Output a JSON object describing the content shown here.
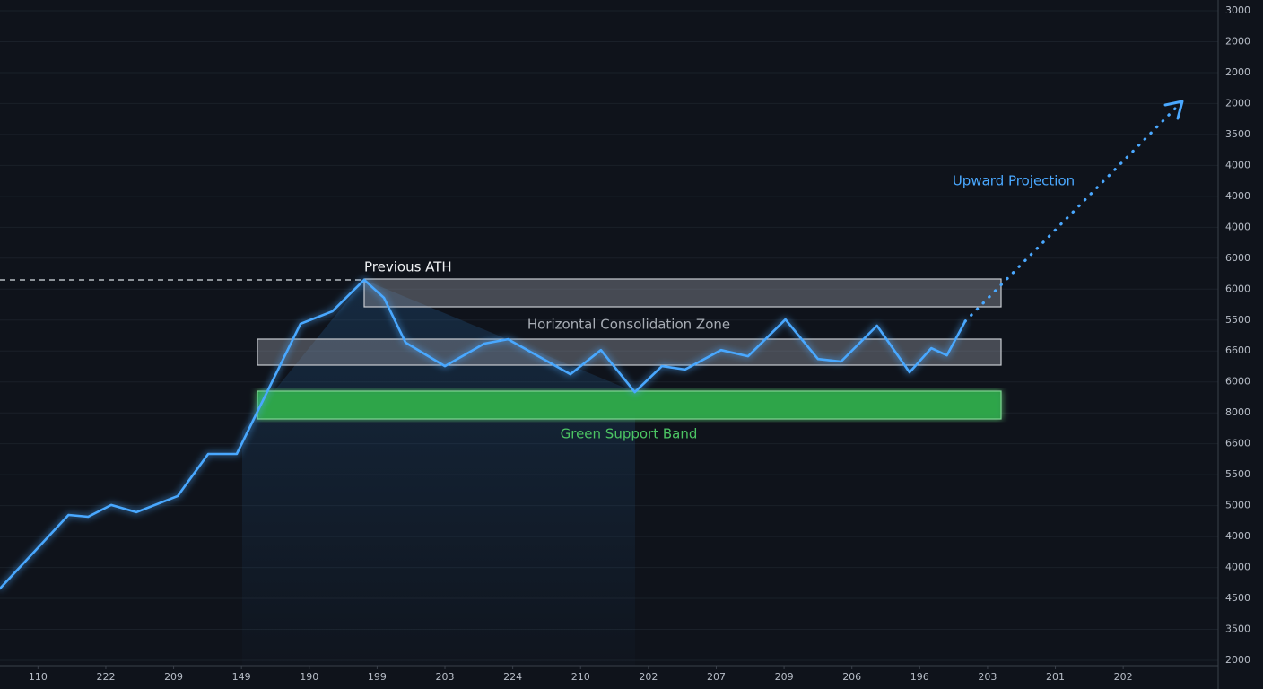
{
  "chart_data": {
    "type": "line",
    "xlim": [
      -0.56,
      17.4
    ],
    "ylim": [
      0,
      21
    ],
    "grid": true,
    "xticks": [
      {
        "value": 0,
        "label": "110"
      },
      {
        "value": 1,
        "label": "222"
      },
      {
        "value": 2,
        "label": "209"
      },
      {
        "value": 3,
        "label": "149"
      },
      {
        "value": 4,
        "label": "190"
      },
      {
        "value": 5,
        "label": "199"
      },
      {
        "value": 6,
        "label": "203"
      },
      {
        "value": 7,
        "label": "224"
      },
      {
        "value": 8,
        "label": "210"
      },
      {
        "value": 9,
        "label": "202"
      },
      {
        "value": 10,
        "label": "207"
      },
      {
        "value": 11,
        "label": "209"
      },
      {
        "value": 12,
        "label": "206"
      },
      {
        "value": 13,
        "label": "196"
      },
      {
        "value": 14,
        "label": "203"
      },
      {
        "value": 15,
        "label": "201"
      },
      {
        "value": 16,
        "label": "202"
      }
    ],
    "yticks": [
      {
        "value": 21,
        "label": "3000"
      },
      {
        "value": 20,
        "label": "2000"
      },
      {
        "value": 19,
        "label": "2000"
      },
      {
        "value": 18,
        "label": "2000"
      },
      {
        "value": 17,
        "label": "3500"
      },
      {
        "value": 16,
        "label": "4000"
      },
      {
        "value": 15,
        "label": "4000"
      },
      {
        "value": 14,
        "label": "4000"
      },
      {
        "value": 13,
        "label": "6000"
      },
      {
        "value": 12,
        "label": "6000"
      },
      {
        "value": 11,
        "label": "5500"
      },
      {
        "value": 10,
        "label": "6600"
      },
      {
        "value": 9,
        "label": "6000"
      },
      {
        "value": 8,
        "label": "8000"
      },
      {
        "value": 7,
        "label": "6600"
      },
      {
        "value": 6,
        "label": "5500"
      },
      {
        "value": 5,
        "label": "5000"
      },
      {
        "value": 4,
        "label": "4000"
      },
      {
        "value": 3,
        "label": "4000"
      },
      {
        "value": 2,
        "label": "4500"
      },
      {
        "value": 1,
        "label": "3500"
      },
      {
        "value": 0,
        "label": "2000"
      }
    ],
    "series": [
      {
        "color": "#4aa8ff",
        "x": [
          -0.56,
          0.45,
          0.74,
          1.08,
          1.45,
          2.06,
          2.51,
          2.93,
          3.87,
          4.34,
          4.81,
          5.1,
          5.42,
          6.0,
          6.58,
          6.93,
          7.85,
          8.3,
          8.8,
          9.2,
          9.54,
          10.07,
          10.47,
          11.02,
          11.5,
          11.84,
          12.37,
          12.85,
          13.17,
          13.4,
          13.67
        ],
        "values": [
          2.32,
          4.7,
          4.64,
          5.02,
          4.79,
          5.31,
          6.67,
          6.67,
          10.88,
          11.28,
          12.3,
          11.72,
          10.27,
          9.51,
          10.24,
          10.38,
          9.25,
          10.03,
          8.67,
          9.51,
          9.4,
          10.03,
          9.83,
          11.02,
          9.74,
          9.66,
          10.82,
          9.31,
          10.09,
          9.86,
          10.96
        ]
      },
      {
        "color": "#4aa8ff",
        "style": "dotted",
        "x": [
          13.67,
          16.87
        ],
        "values": [
          10.96,
          18.07
        ]
      }
    ],
    "annotations": [
      "Previous ATH",
      "Horizontal Consolidation Zone",
      "Green Support Band",
      "Upward Projection"
    ]
  }
}
